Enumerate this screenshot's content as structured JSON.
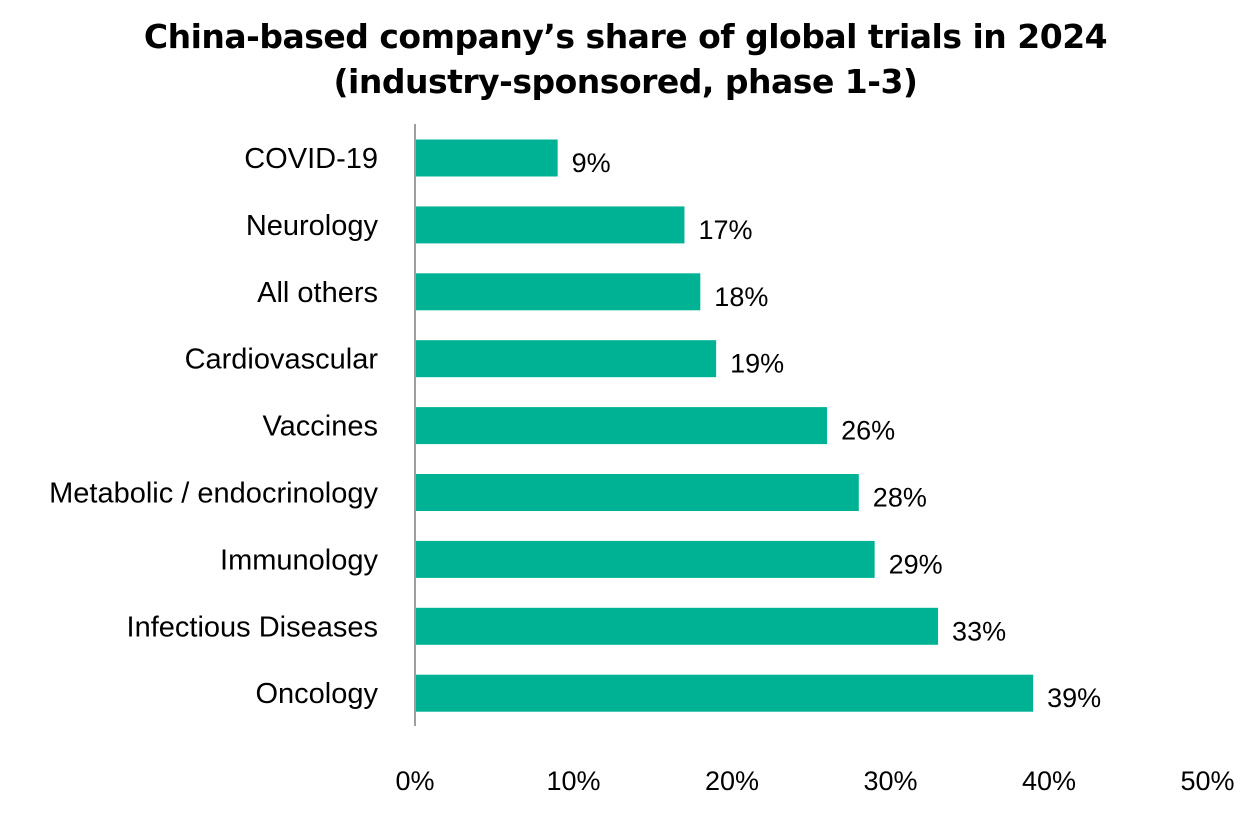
{
  "title_line1": "China-based company’s share of global trials in 2024",
  "title_line2": "(industry-sponsored, phase 1-3)",
  "colors": {
    "bar": "#00b294",
    "axis": "#7f7f7f",
    "text": "#000000"
  },
  "chart_data": {
    "type": "bar",
    "orientation": "horizontal",
    "title": "China-based company’s share of global trials in 2024 (industry-sponsored, phase 1-3)",
    "categories": [
      "COVID-19",
      "Neurology",
      "All others",
      "Cardiovascular",
      "Vaccines",
      "Metabolic / endocrinology",
      "Immunology",
      "Infectious Diseases",
      "Oncology"
    ],
    "values": [
      9,
      17,
      18,
      19,
      26,
      28,
      29,
      33,
      39
    ],
    "data_labels": [
      "9%",
      "17%",
      "18%",
      "19%",
      "26%",
      "28%",
      "29%",
      "33%",
      "39%"
    ],
    "xlim": [
      0,
      50
    ],
    "x_ticks": [
      0,
      10,
      20,
      30,
      40,
      50
    ],
    "x_tick_labels": [
      "0%",
      "10%",
      "20%",
      "30%",
      "40%",
      "50%"
    ],
    "xlabel": "",
    "ylabel": "",
    "grid": false,
    "legend": "none"
  }
}
